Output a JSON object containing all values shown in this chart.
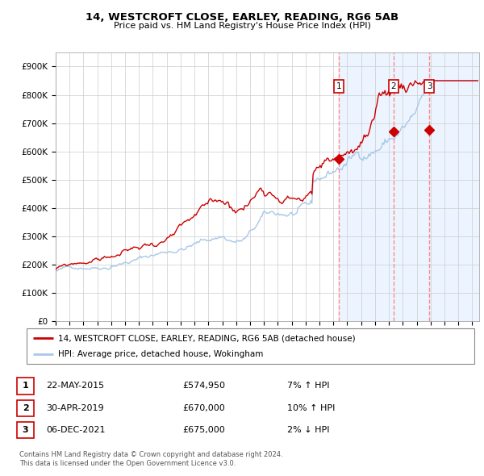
{
  "title": "14, WESTCROFT CLOSE, EARLEY, READING, RG6 5AB",
  "subtitle": "Price paid vs. HM Land Registry's House Price Index (HPI)",
  "ylim": [
    0,
    950000
  ],
  "xlim_start": 1995.0,
  "xlim_end": 2025.5,
  "yticks": [
    0,
    100000,
    200000,
    300000,
    400000,
    500000,
    600000,
    700000,
    800000,
    900000
  ],
  "ytick_labels": [
    "£0",
    "£100K",
    "£200K",
    "£300K",
    "£400K",
    "£500K",
    "£600K",
    "£700K",
    "£800K",
    "£900K"
  ],
  "xticks": [
    1995,
    1996,
    1997,
    1998,
    1999,
    2000,
    2001,
    2002,
    2003,
    2004,
    2005,
    2006,
    2007,
    2008,
    2009,
    2010,
    2011,
    2012,
    2013,
    2014,
    2015,
    2016,
    2017,
    2018,
    2019,
    2020,
    2021,
    2022,
    2023,
    2024,
    2025
  ],
  "hpi_line_color": "#a8c8e8",
  "price_line_color": "#cc0000",
  "marker_color": "#cc0000",
  "vline_color": "#ff8888",
  "bg_shade_color": "#ddeeff",
  "sale1_date": 2015.38,
  "sale1_price": 574950,
  "sale1_label": "1",
  "sale2_date": 2019.33,
  "sale2_price": 670000,
  "sale2_label": "2",
  "sale3_date": 2021.92,
  "sale3_price": 675000,
  "sale3_label": "3",
  "legend_house_label": "14, WESTCROFT CLOSE, EARLEY, READING, RG6 5AB (detached house)",
  "legend_hpi_label": "HPI: Average price, detached house, Wokingham",
  "table_rows": [
    {
      "num": "1",
      "date": "22-MAY-2015",
      "price": "£574,950",
      "pct": "7% ↑ HPI"
    },
    {
      "num": "2",
      "date": "30-APR-2019",
      "price": "£670,000",
      "pct": "10% ↑ HPI"
    },
    {
      "num": "3",
      "date": "06-DEC-2021",
      "price": "£675,000",
      "pct": "2% ↓ HPI"
    }
  ],
  "footnote1": "Contains HM Land Registry data © Crown copyright and database right 2024.",
  "footnote2": "This data is licensed under the Open Government Licence v3.0."
}
